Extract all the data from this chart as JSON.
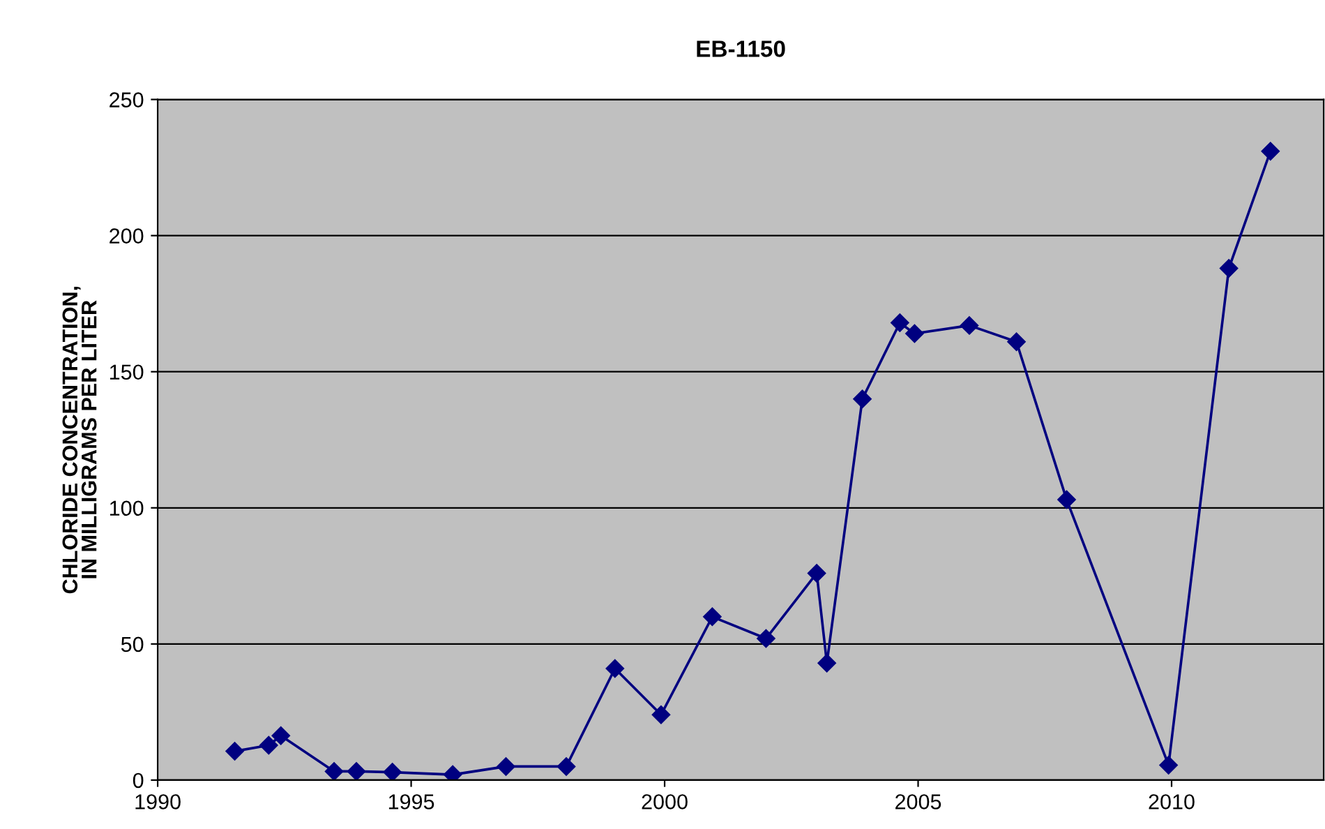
{
  "chart_data": {
    "type": "line",
    "title": "EB-1150",
    "ylabel": "CHLORIDE CONCENTRATION,\nIN MILLIGRAMS PER LITER",
    "x": [
      1991.52,
      1992.19,
      1992.43,
      1993.48,
      1993.92,
      1994.63,
      1995.82,
      1996.87,
      1998.06,
      1999.02,
      1999.93,
      2000.94,
      2002.0,
      2003.0,
      2003.2,
      2003.9,
      2004.64,
      2004.93,
      2006.01,
      2006.94,
      2007.93,
      2009.94,
      2011.13,
      2011.95
    ],
    "series": [
      {
        "color": "#000080",
        "values": [
          10.6,
          12.8,
          16.3,
          3.2,
          3.2,
          2.9,
          2,
          5,
          5,
          41,
          24,
          60,
          52,
          76,
          43,
          140,
          168,
          164,
          167,
          161,
          103,
          5.5,
          188,
          231
        ]
      }
    ],
    "xlim": [
      1990,
      2013
    ],
    "xticks": [
      1990,
      1995,
      2000,
      2005,
      2010
    ],
    "ylim": [
      0,
      250
    ],
    "yticks": [
      0,
      50,
      100,
      150,
      200,
      250
    ],
    "grid": "y",
    "marker": "diamond",
    "line_style": "solid",
    "legend": false
  }
}
